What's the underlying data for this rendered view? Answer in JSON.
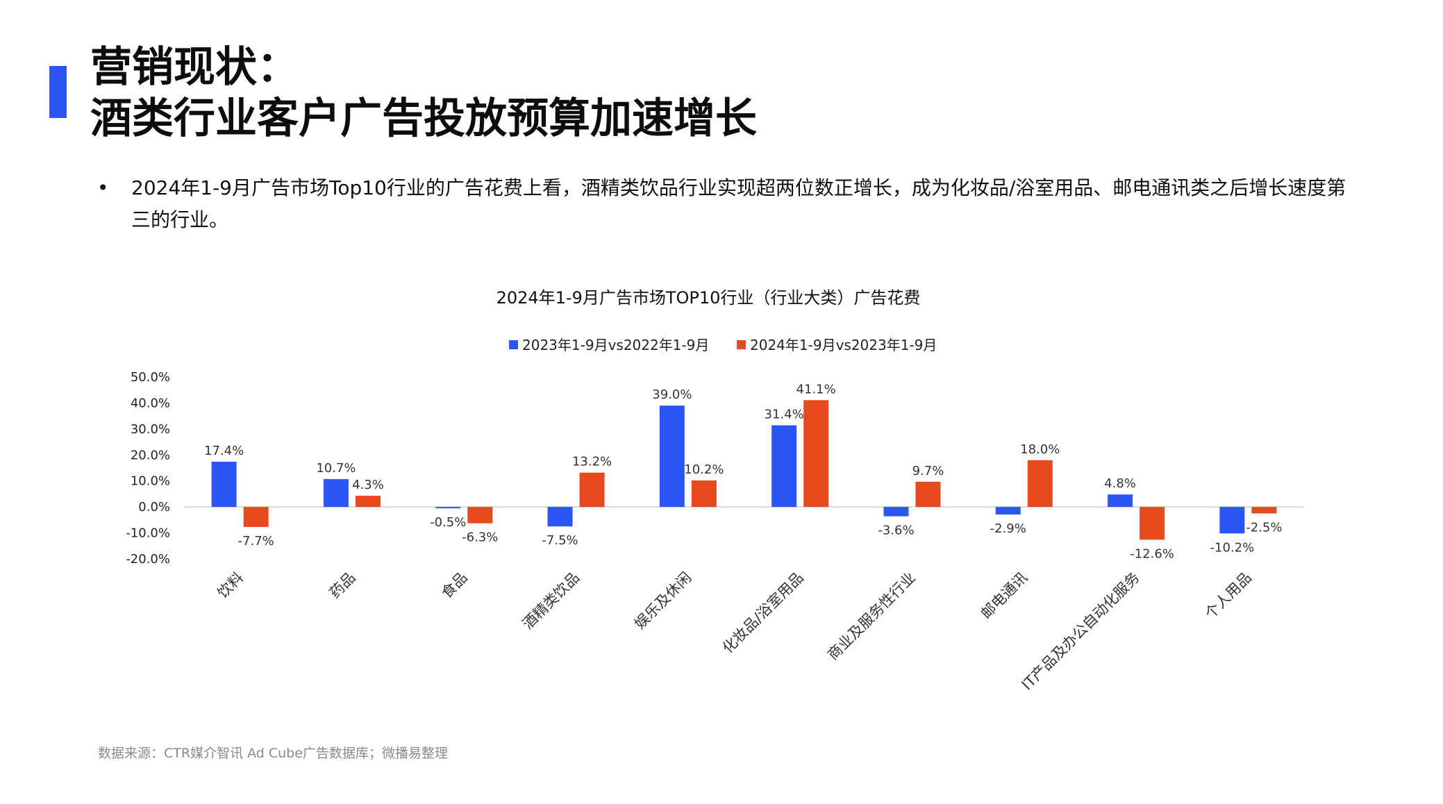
{
  "header": {
    "title_line1": "营销现状：",
    "title_line2": "酒类行业客户广告投放预算加速增长"
  },
  "bullet": {
    "marker": "•",
    "text": "2024年1-9月广告市场Top10行业的广告花费上看，酒精类饮品行业实现超两位数正增长，成为化妆品/浴室用品、邮电通讯类之后增长速度第三的行业。"
  },
  "footer": {
    "source": "数据来源：CTR媒介智讯 Ad Cube广告数据库；微播易整理"
  },
  "colors": {
    "accent": "#2b56f5",
    "series1": "#2b56f5",
    "series2": "#e84a1f"
  },
  "chart_data": {
    "type": "bar",
    "title": "2024年1-9月广告市场TOP10行业（行业大类）广告花费",
    "xlabel": "",
    "ylabel": "",
    "ylim": [
      -20,
      50
    ],
    "yticks": [
      "50.0%",
      "40.0%",
      "30.0%",
      "20.0%",
      "10.0%",
      "0.0%",
      "-10.0%",
      "-20.0%"
    ],
    "ytick_values": [
      50,
      40,
      30,
      20,
      10,
      0,
      -10,
      -20
    ],
    "grid": false,
    "legend_position": "top-center",
    "categories": [
      "饮料",
      "药品",
      "食品",
      "酒精类饮品",
      "娱乐及休闲",
      "化妆品/浴室用品",
      "商业及服务性行业",
      "邮电通讯",
      "IT产品及办公自动化服务",
      "个人用品"
    ],
    "series": [
      {
        "name": "2023年1-9月vs2022年1-9月",
        "values": [
          17.4,
          10.7,
          -0.5,
          -7.5,
          39.0,
          31.4,
          -3.6,
          -2.9,
          4.8,
          -10.2
        ],
        "labels": [
          "17.4%",
          "10.7%",
          "-0.5%",
          "-7.5%",
          "39.0%",
          "31.4%",
          "-3.6%",
          "-2.9%",
          "4.8%",
          "-10.2%"
        ]
      },
      {
        "name": "2024年1-9月vs2023年1-9月",
        "values": [
          -7.7,
          4.3,
          -6.3,
          13.2,
          10.2,
          41.1,
          9.7,
          18.0,
          -12.6,
          -2.5
        ],
        "labels": [
          "-7.7%",
          "4.3%",
          "-6.3%",
          "13.2%",
          "10.2%",
          "41.1%",
          "9.7%",
          "18.0%",
          "-12.6%",
          "-2.5%"
        ]
      }
    ]
  }
}
